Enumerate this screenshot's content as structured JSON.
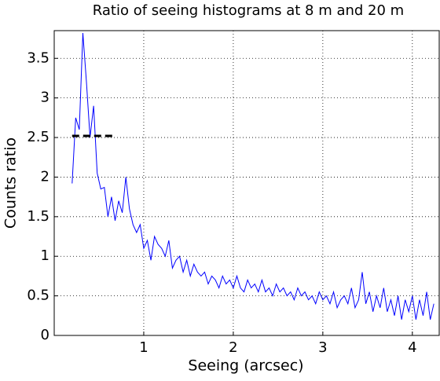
{
  "chart_data": {
    "type": "line",
    "title": "Ratio of seeing histograms at 8 m and 20 m",
    "x_label": "Seeing (arcsec)",
    "y_label": "Counts ratio",
    "xlim": [
      0,
      4.3
    ],
    "ylim": [
      0,
      3.85
    ],
    "xticks": [
      1,
      2,
      3,
      4
    ],
    "yticks": [
      0,
      0.5,
      1,
      1.5,
      2,
      2.5,
      3,
      3.5
    ],
    "grid": true,
    "series": [
      {
        "color": "#0000ff",
        "x": [
          0.2,
          0.24,
          0.28,
          0.32,
          0.36,
          0.4,
          0.44,
          0.48,
          0.52,
          0.56,
          0.6,
          0.64,
          0.68,
          0.72,
          0.76,
          0.8,
          0.84,
          0.88,
          0.92,
          0.96,
          1.0,
          1.04,
          1.08,
          1.12,
          1.16,
          1.2,
          1.24,
          1.28,
          1.32,
          1.36,
          1.4,
          1.44,
          1.48,
          1.52,
          1.56,
          1.6,
          1.64,
          1.68,
          1.72,
          1.76,
          1.8,
          1.84,
          1.88,
          1.92,
          1.96,
          2.0,
          2.04,
          2.08,
          2.12,
          2.16,
          2.2,
          2.24,
          2.28,
          2.32,
          2.36,
          2.4,
          2.44,
          2.48,
          2.52,
          2.56,
          2.6,
          2.64,
          2.68,
          2.72,
          2.76,
          2.8,
          2.84,
          2.88,
          2.92,
          2.96,
          3.0,
          3.04,
          3.08,
          3.12,
          3.16,
          3.2,
          3.24,
          3.28,
          3.32,
          3.36,
          3.4,
          3.44,
          3.48,
          3.52,
          3.56,
          3.6,
          3.64,
          3.68,
          3.72,
          3.76,
          3.8,
          3.84,
          3.88,
          3.92,
          3.96,
          4.0,
          4.04,
          4.08,
          4.12,
          4.16,
          4.2,
          4.24
        ],
        "values": [
          1.92,
          2.75,
          2.6,
          3.82,
          3.2,
          2.5,
          2.9,
          2.05,
          1.85,
          1.87,
          1.5,
          1.75,
          1.45,
          1.7,
          1.55,
          2.0,
          1.6,
          1.4,
          1.3,
          1.4,
          1.1,
          1.2,
          0.95,
          1.25,
          1.15,
          1.1,
          1.0,
          1.2,
          0.85,
          0.95,
          1.0,
          0.8,
          0.95,
          0.75,
          0.9,
          0.8,
          0.75,
          0.8,
          0.65,
          0.75,
          0.7,
          0.6,
          0.75,
          0.65,
          0.7,
          0.6,
          0.75,
          0.6,
          0.55,
          0.7,
          0.6,
          0.65,
          0.55,
          0.7,
          0.55,
          0.6,
          0.5,
          0.65,
          0.55,
          0.6,
          0.5,
          0.55,
          0.45,
          0.6,
          0.5,
          0.55,
          0.45,
          0.5,
          0.4,
          0.55,
          0.45,
          0.5,
          0.4,
          0.55,
          0.35,
          0.45,
          0.5,
          0.4,
          0.6,
          0.35,
          0.45,
          0.8,
          0.4,
          0.55,
          0.3,
          0.5,
          0.35,
          0.6,
          0.3,
          0.45,
          0.25,
          0.5,
          0.2,
          0.45,
          0.3,
          0.5,
          0.2,
          0.45,
          0.25,
          0.55,
          0.2,
          0.4
        ]
      },
      {
        "color": "#000000",
        "dashed": true,
        "x": [
          0.2,
          0.67
        ],
        "values": [
          2.52,
          2.52
        ]
      }
    ]
  }
}
